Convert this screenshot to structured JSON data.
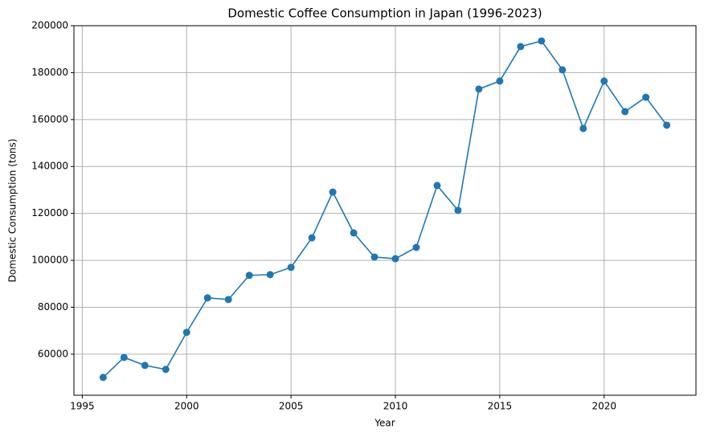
{
  "chart_data": {
    "type": "line",
    "title": "Domestic Coffee Consumption in Japan (1996-2023)",
    "xlabel": "Year",
    "ylabel": "Domestic Consumption (tons)",
    "x": [
      1996,
      1997,
      1998,
      1999,
      2000,
      2001,
      2002,
      2003,
      2004,
      2005,
      2006,
      2007,
      2008,
      2009,
      2010,
      2011,
      2012,
      2013,
      2014,
      2015,
      2016,
      2017,
      2018,
      2019,
      2020,
      2021,
      2022,
      2023
    ],
    "series": [
      {
        "name": "Domestic Consumption",
        "color": "#1f77b4",
        "values": [
          50100,
          58600,
          55200,
          53500,
          69300,
          84000,
          83300,
          93600,
          93900,
          97000,
          109600,
          129100,
          111700,
          101400,
          100700,
          105500,
          131900,
          121300,
          173000,
          176400,
          191100,
          193500,
          181200,
          156200,
          176400,
          163400,
          169500,
          157600
        ]
      }
    ],
    "xlim": [
      1994.6,
      2024.4
    ],
    "xticks": [
      1995,
      2000,
      2005,
      2010,
      2015,
      2020
    ],
    "ylim": [
      42500,
      200000
    ],
    "yticks": [
      60000,
      80000,
      100000,
      120000,
      140000,
      160000,
      180000,
      200000
    ],
    "grid": true,
    "markers": true
  }
}
